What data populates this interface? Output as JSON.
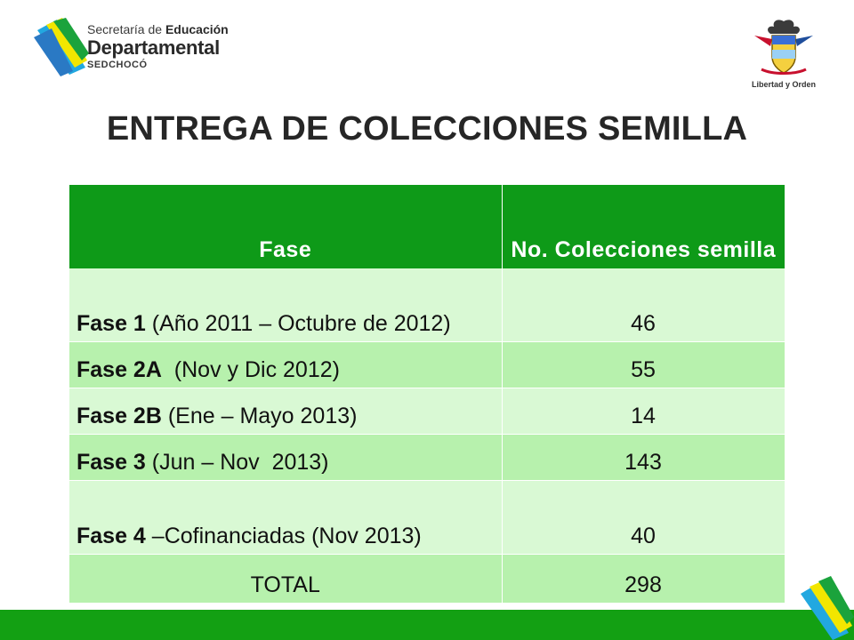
{
  "header": {
    "org_line1_prefix": "Secretaría de ",
    "org_line1_bold": "Educación",
    "org_line2": "Departamental",
    "org_line3": "SEDCHOCÓ",
    "seal_caption": "Libertad y Orden"
  },
  "title": "ENTREGA DE COLECCIONES SEMILLA",
  "table": {
    "headers": [
      "Fase",
      "No. Colecciones semilla"
    ],
    "rows": [
      {
        "phase_bold": "Fase 1",
        "phase_rest": " (Año 2011 – Octubre de 2012)",
        "count": "46"
      },
      {
        "phase_bold": "Fase 2A",
        "phase_rest": "  (Nov y Dic 2012)",
        "count": "55"
      },
      {
        "phase_bold": "Fase 2B",
        "phase_rest": " (Ene – Mayo 2013)",
        "count": "14"
      },
      {
        "phase_bold": "Fase 3",
        "phase_rest": " (Jun – Nov  2013)",
        "count": "143"
      },
      {
        "phase_bold": "Fase 4",
        "phase_rest": " –Cofinanciadas (Nov 2013)",
        "count": "40"
      }
    ],
    "total_label": "TOTAL",
    "total_value": "298"
  },
  "colors": {
    "header_green": "#0e9a18",
    "row_light": "#d9f9d4",
    "row_mid": "#b7f1ad",
    "bar_green": "#13a013"
  }
}
